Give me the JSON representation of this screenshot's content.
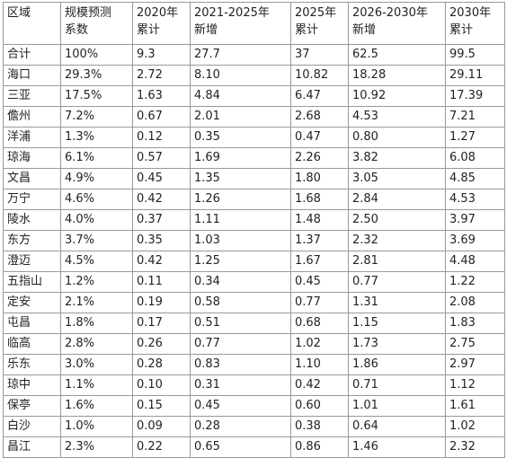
{
  "table": {
    "header": [
      [
        "区域"
      ],
      [
        "规模预测",
        "系数"
      ],
      [
        "2020年",
        "累计"
      ],
      [
        "2021-2025年",
        "新增"
      ],
      [
        "2025年",
        "累计"
      ],
      [
        "2026-2030年",
        "新增"
      ],
      [
        "2030年",
        "累计"
      ]
    ],
    "rows": [
      [
        "合计",
        "100%",
        "9.3",
        "27.7",
        "37",
        "62.5",
        "99.5"
      ],
      [
        "海口",
        "29.3%",
        "2.72",
        "8.10",
        "10.82",
        "18.28",
        "29.11"
      ],
      [
        "三亚",
        "17.5%",
        "1.63",
        "4.84",
        "6.47",
        "10.92",
        "17.39"
      ],
      [
        "儋州",
        "7.2%",
        "0.67",
        "2.01",
        "2.68",
        "4.53",
        "7.21"
      ],
      [
        "洋浦",
        "1.3%",
        "0.12",
        "0.35",
        "0.47",
        "0.80",
        "1.27"
      ],
      [
        "琼海",
        "6.1%",
        "0.57",
        "1.69",
        "2.26",
        "3.82",
        "6.08"
      ],
      [
        "文昌",
        "4.9%",
        "0.45",
        "1.35",
        "1.80",
        "3.05",
        "4.85"
      ],
      [
        "万宁",
        "4.6%",
        "0.42",
        "1.26",
        "1.68",
        "2.84",
        "4.53"
      ],
      [
        "陵水",
        "4.0%",
        "0.37",
        "1.11",
        "1.48",
        "2.50",
        "3.97"
      ],
      [
        "东方",
        "3.7%",
        "0.35",
        "1.03",
        "1.37",
        "2.32",
        "3.69"
      ],
      [
        "澄迈",
        "4.5%",
        "0.42",
        "1.25",
        "1.67",
        "2.81",
        "4.48"
      ],
      [
        "五指山",
        "1.2%",
        "0.11",
        "0.34",
        "0.45",
        "0.77",
        "1.22"
      ],
      [
        "定安",
        "2.1%",
        "0.19",
        "0.58",
        "0.77",
        "1.31",
        "2.08"
      ],
      [
        "屯昌",
        "1.8%",
        "0.17",
        "0.51",
        "0.68",
        "1.15",
        "1.83"
      ],
      [
        "临高",
        "2.8%",
        "0.26",
        "0.77",
        "1.02",
        "1.73",
        "2.75"
      ],
      [
        "乐东",
        "3.0%",
        "0.28",
        "0.83",
        "1.10",
        "1.86",
        "2.97"
      ],
      [
        "琼中",
        "1.1%",
        "0.10",
        "0.31",
        "0.42",
        "0.71",
        "1.12"
      ],
      [
        "保亭",
        "1.6%",
        "0.15",
        "0.45",
        "0.60",
        "1.01",
        "1.61"
      ],
      [
        "白沙",
        "1.0%",
        "0.09",
        "0.28",
        "0.38",
        "0.64",
        "1.02"
      ],
      [
        "昌江",
        "2.3%",
        "0.22",
        "0.65",
        "0.86",
        "1.46",
        "2.32"
      ]
    ]
  }
}
